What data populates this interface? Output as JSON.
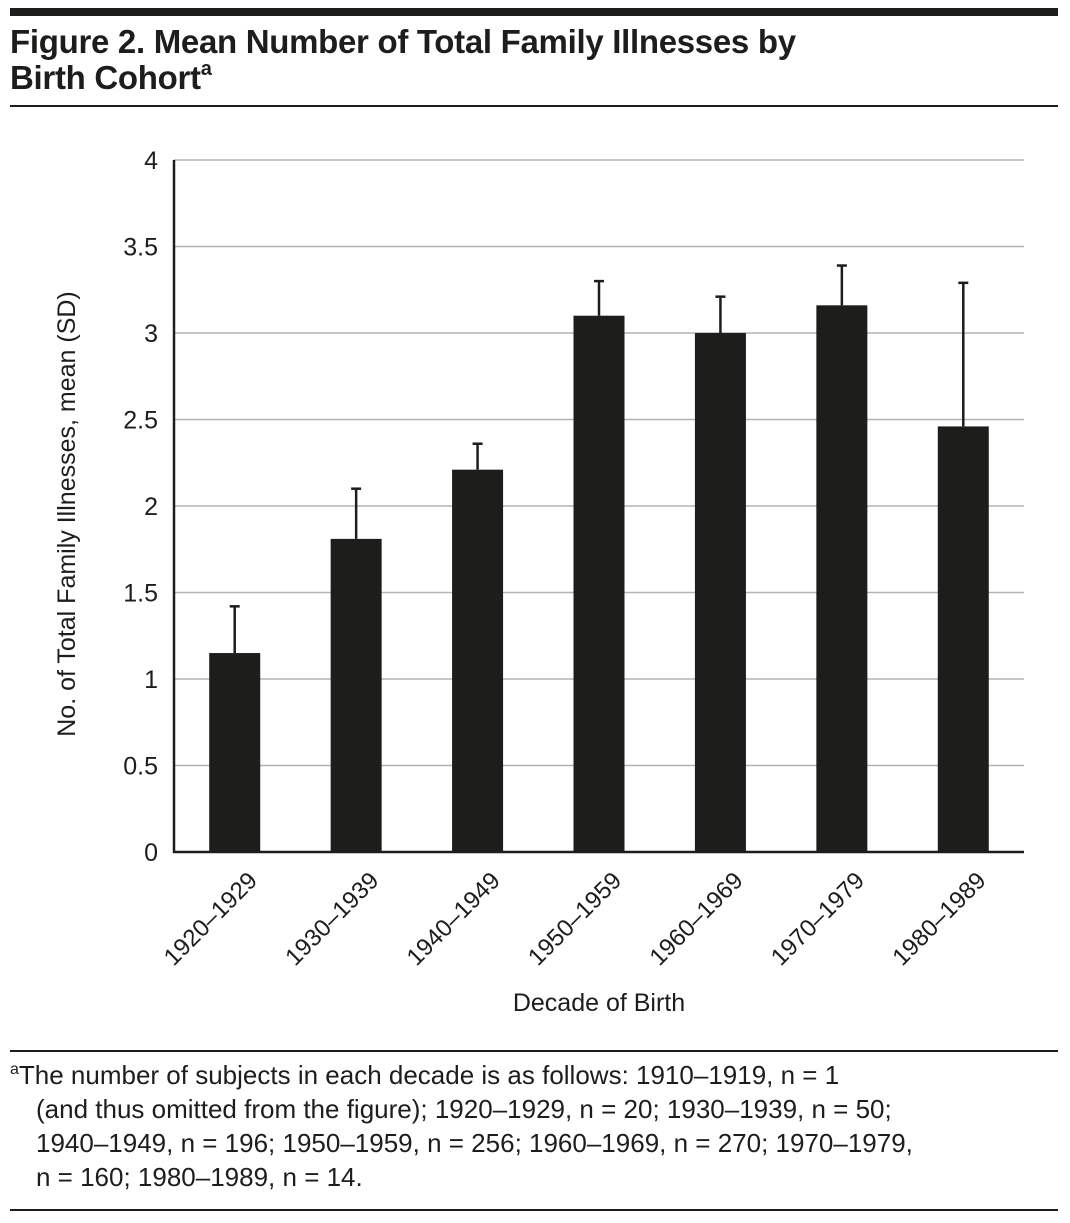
{
  "figure": {
    "title": "Figure 2. Mean Number of Total Family Illnesses by Birth Cohort",
    "title_line1": "Figure 2. Mean Number of Total Family Illnesses by",
    "title_line2": "Birth Cohort",
    "title_superscript": "a"
  },
  "footnote": {
    "marker": "a",
    "lines": [
      "The number of subjects in each decade is as follows: 1910–1919, n = 1",
      "(and thus omitted from the figure); 1920–1929, n = 20; 1930–1939, n = 50;",
      "1940–1949, n = 196; 1950–1959, n = 256; 1960–1969, n = 270; 1970–1979,",
      "n = 160; 1980–1989, n = 14."
    ]
  },
  "colors": {
    "bar": "#1d1d1b",
    "gridline": "#b3b3b3",
    "axis": "#1d1d1b",
    "text": "#1d1d1b"
  },
  "chart_data": {
    "type": "bar",
    "title": "Figure 2. Mean Number of Total Family Illnesses by Birth Cohort",
    "xlabel": "Decade of Birth",
    "ylabel": "No. of Total Family Illnesses, mean (SD)",
    "categories": [
      "1920–1929",
      "1930–1939",
      "1940–1949",
      "1950–1959",
      "1960–1969",
      "1970–1979",
      "1980–1989"
    ],
    "values": [
      1.15,
      1.81,
      2.21,
      3.1,
      3.0,
      3.16,
      2.46
    ],
    "error_sd": [
      0.27,
      0.29,
      0.15,
      0.2,
      0.21,
      0.23,
      0.83
    ],
    "ylim": [
      0,
      4
    ],
    "yticks": [
      0,
      0.5,
      1,
      1.5,
      2,
      2.5,
      3,
      3.5,
      4
    ],
    "ytick_labels": [
      "0",
      "0.5",
      "1",
      "1.5",
      "2",
      "2.5",
      "3",
      "3.5",
      "4"
    ],
    "grid": true,
    "legend": "none"
  }
}
